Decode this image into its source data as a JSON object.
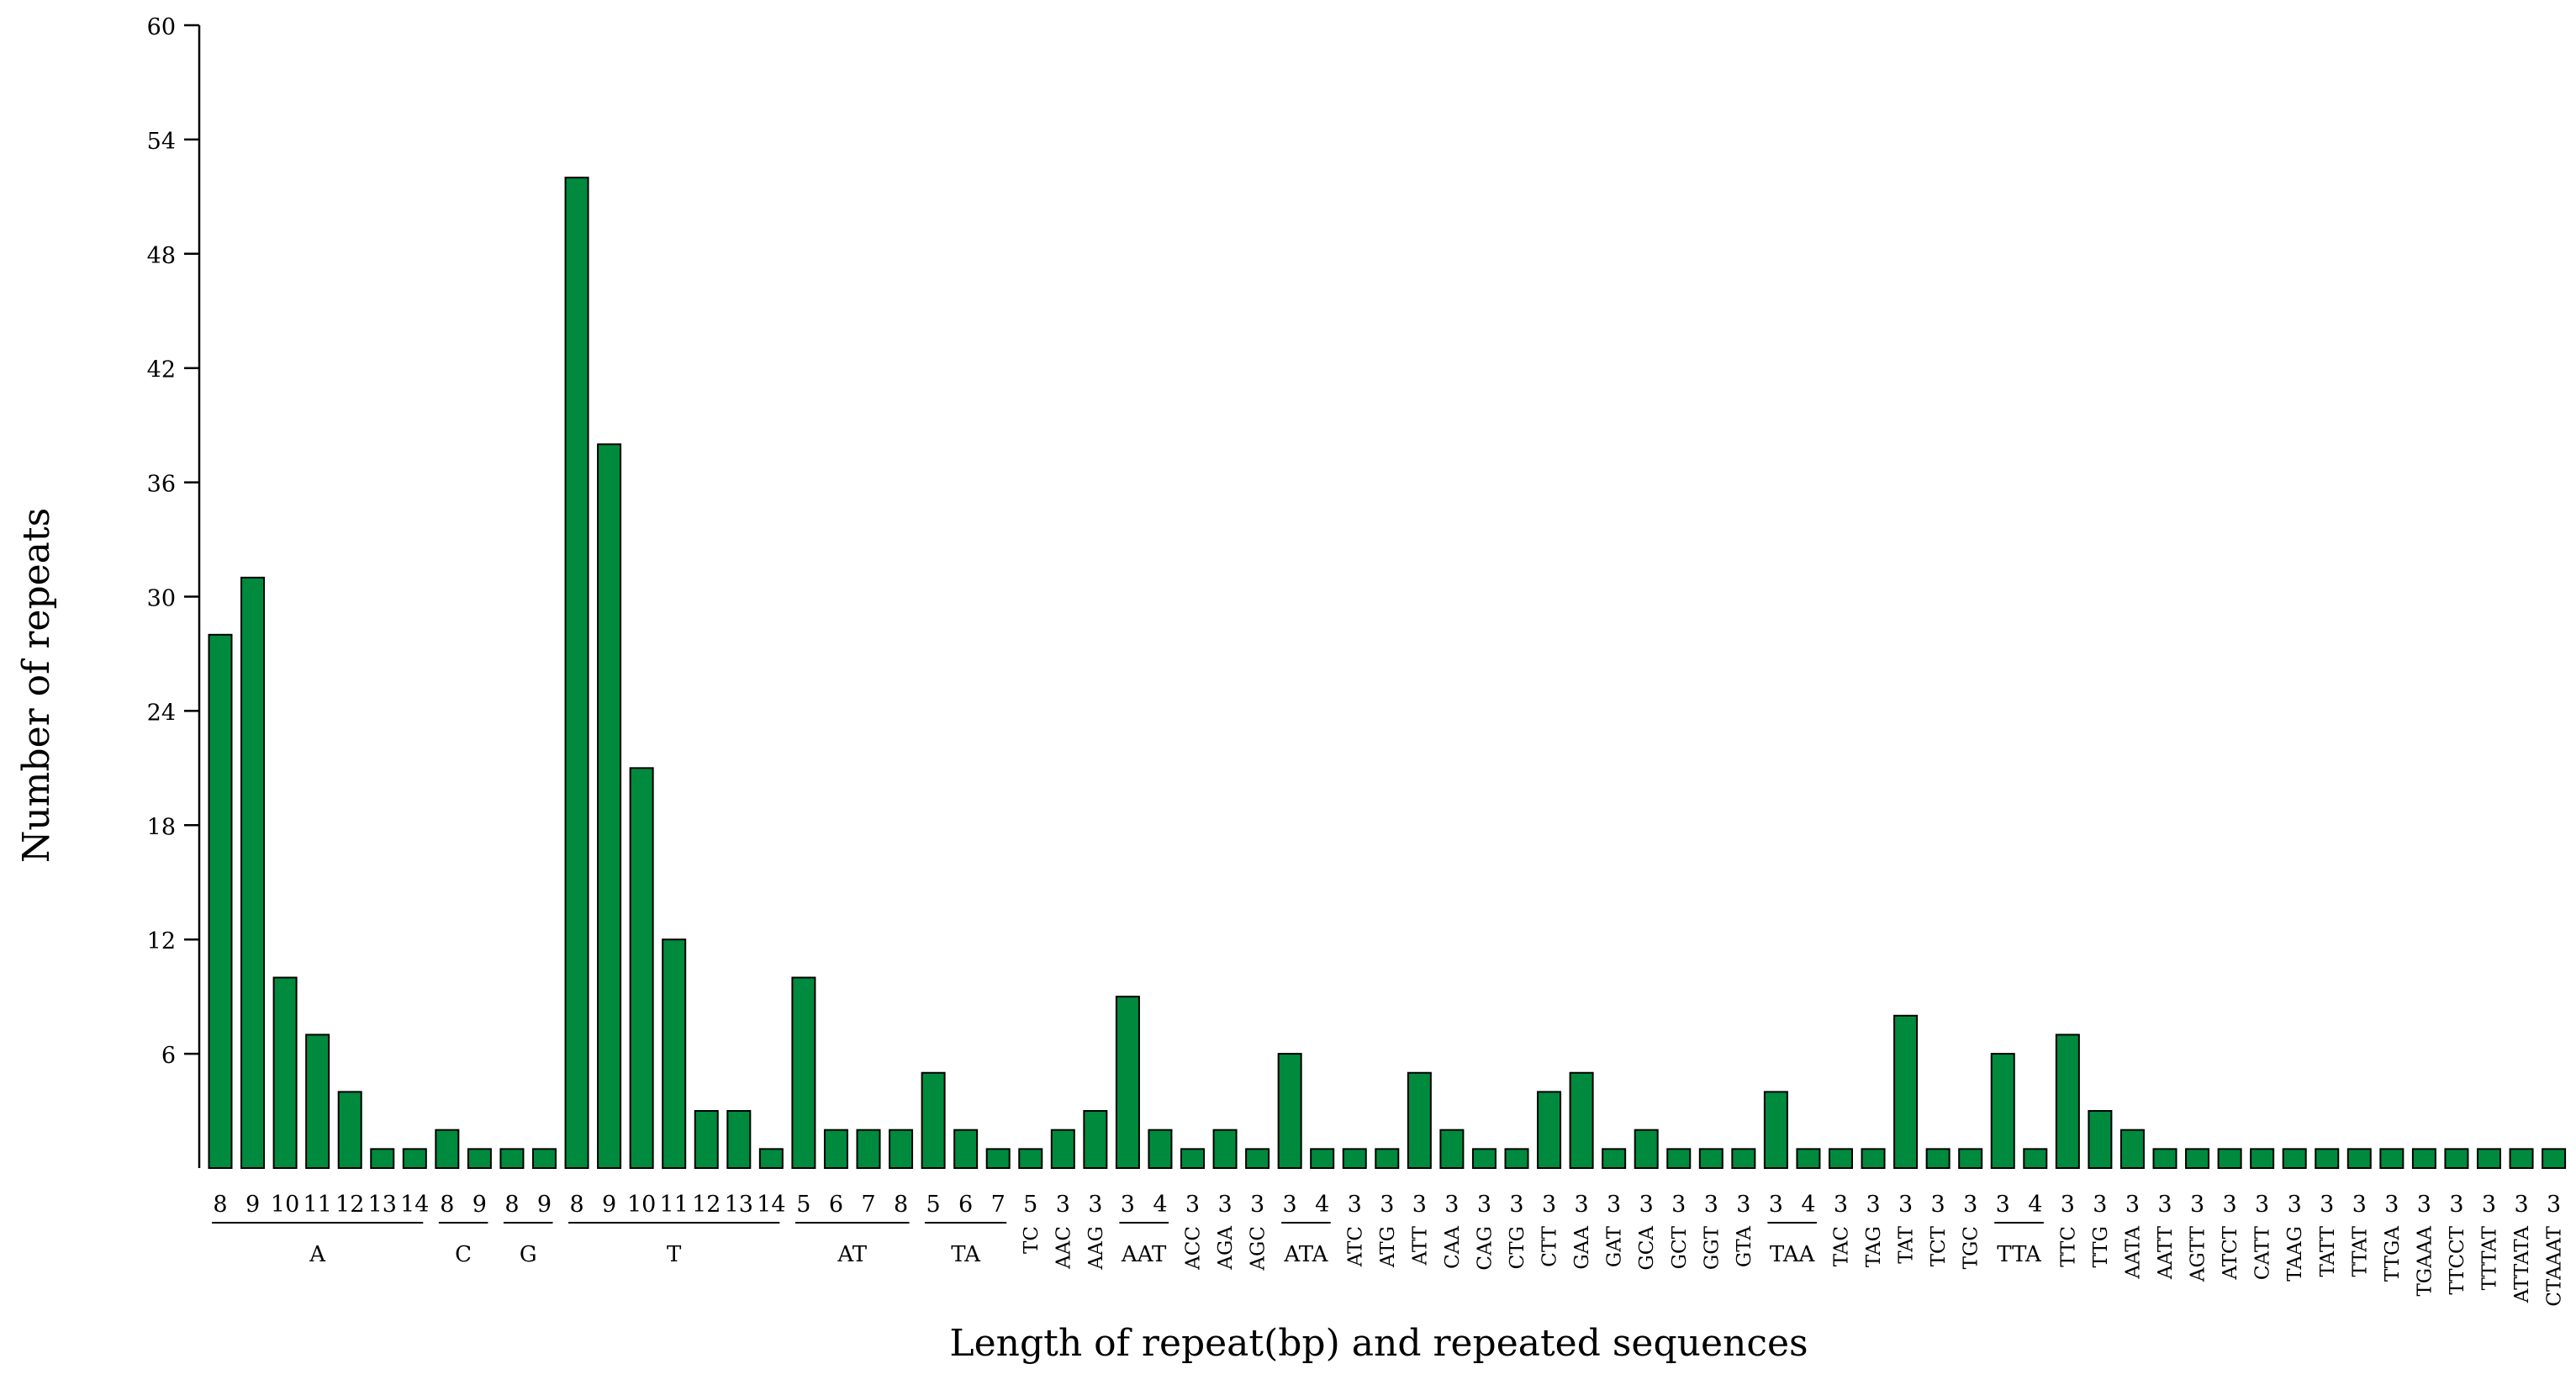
{
  "chart_data": {
    "type": "bar",
    "title": "",
    "xlabel": "Length of repeat(bp) and repeated sequences",
    "ylabel": "Number of repeats",
    "ylim": [
      0,
      60
    ],
    "yticks": [
      6,
      12,
      18,
      24,
      30,
      36,
      42,
      48,
      54,
      60
    ],
    "grid": false,
    "bar_color": "#008a3e",
    "bar_edge_color": "#000000",
    "groups": [
      {
        "name": "A",
        "bars": [
          {
            "length": "8",
            "value": 28
          },
          {
            "length": "9",
            "value": 31
          },
          {
            "length": "10",
            "value": 10
          },
          {
            "length": "11",
            "value": 7
          },
          {
            "length": "12",
            "value": 4
          },
          {
            "length": "13",
            "value": 1
          },
          {
            "length": "14",
            "value": 1
          }
        ]
      },
      {
        "name": "C",
        "bars": [
          {
            "length": "8",
            "value": 2
          },
          {
            "length": "9",
            "value": 1
          }
        ]
      },
      {
        "name": "G",
        "bars": [
          {
            "length": "8",
            "value": 1
          },
          {
            "length": "9",
            "value": 1
          }
        ]
      },
      {
        "name": "T",
        "bars": [
          {
            "length": "8",
            "value": 52
          },
          {
            "length": "9",
            "value": 38
          },
          {
            "length": "10",
            "value": 21
          },
          {
            "length": "11",
            "value": 12
          },
          {
            "length": "12",
            "value": 3
          },
          {
            "length": "13",
            "value": 3
          },
          {
            "length": "14",
            "value": 1
          }
        ]
      },
      {
        "name": "AT",
        "bars": [
          {
            "length": "5",
            "value": 10
          },
          {
            "length": "6",
            "value": 2
          },
          {
            "length": "7",
            "value": 2
          },
          {
            "length": "8",
            "value": 2
          }
        ]
      },
      {
        "name": "TA",
        "bars": [
          {
            "length": "5",
            "value": 5
          },
          {
            "length": "6",
            "value": 2
          },
          {
            "length": "7",
            "value": 1
          }
        ]
      },
      {
        "name": "TC",
        "bars": [
          {
            "length": "5",
            "value": 1
          }
        ]
      },
      {
        "name": "AAC",
        "bars": [
          {
            "length": "3",
            "value": 2
          }
        ]
      },
      {
        "name": "AAG",
        "bars": [
          {
            "length": "3",
            "value": 3
          }
        ]
      },
      {
        "name": "AAT",
        "bars": [
          {
            "length": "3",
            "value": 9
          },
          {
            "length": "4",
            "value": 2
          }
        ]
      },
      {
        "name": "ACC",
        "bars": [
          {
            "length": "3",
            "value": 1
          }
        ]
      },
      {
        "name": "AGA",
        "bars": [
          {
            "length": "3",
            "value": 2
          }
        ]
      },
      {
        "name": "AGC",
        "bars": [
          {
            "length": "3",
            "value": 1
          }
        ]
      },
      {
        "name": "ATA",
        "bars": [
          {
            "length": "3",
            "value": 6
          },
          {
            "length": "4",
            "value": 1
          }
        ]
      },
      {
        "name": "ATC",
        "bars": [
          {
            "length": "3",
            "value": 1
          }
        ]
      },
      {
        "name": "ATG",
        "bars": [
          {
            "length": "3",
            "value": 1
          }
        ]
      },
      {
        "name": "ATT",
        "bars": [
          {
            "length": "3",
            "value": 5
          }
        ]
      },
      {
        "name": "CAA",
        "bars": [
          {
            "length": "3",
            "value": 2
          }
        ]
      },
      {
        "name": "CAG",
        "bars": [
          {
            "length": "3",
            "value": 1
          }
        ]
      },
      {
        "name": "CTG",
        "bars": [
          {
            "length": "3",
            "value": 1
          }
        ]
      },
      {
        "name": "CTT",
        "bars": [
          {
            "length": "3",
            "value": 4
          }
        ]
      },
      {
        "name": "GAA",
        "bars": [
          {
            "length": "3",
            "value": 5
          }
        ]
      },
      {
        "name": "GAT",
        "bars": [
          {
            "length": "3",
            "value": 1
          }
        ]
      },
      {
        "name": "GCA",
        "bars": [
          {
            "length": "3",
            "value": 2
          }
        ]
      },
      {
        "name": "GCT",
        "bars": [
          {
            "length": "3",
            "value": 1
          }
        ]
      },
      {
        "name": "GGT",
        "bars": [
          {
            "length": "3",
            "value": 1
          }
        ]
      },
      {
        "name": "GTA",
        "bars": [
          {
            "length": "3",
            "value": 1
          }
        ]
      },
      {
        "name": "TAA",
        "bars": [
          {
            "length": "3",
            "value": 4
          },
          {
            "length": "4",
            "value": 1
          }
        ]
      },
      {
        "name": "TAC",
        "bars": [
          {
            "length": "3",
            "value": 1
          }
        ]
      },
      {
        "name": "TAG",
        "bars": [
          {
            "length": "3",
            "value": 1
          }
        ]
      },
      {
        "name": "TAT",
        "bars": [
          {
            "length": "3",
            "value": 8
          }
        ]
      },
      {
        "name": "TCT",
        "bars": [
          {
            "length": "3",
            "value": 1
          }
        ]
      },
      {
        "name": "TGC",
        "bars": [
          {
            "length": "3",
            "value": 1
          }
        ]
      },
      {
        "name": "TTA",
        "bars": [
          {
            "length": "3",
            "value": 6
          },
          {
            "length": "4",
            "value": 1
          }
        ]
      },
      {
        "name": "TTC",
        "bars": [
          {
            "length": "3",
            "value": 7
          }
        ]
      },
      {
        "name": "TTG",
        "bars": [
          {
            "length": "3",
            "value": 3
          }
        ]
      },
      {
        "name": "AATA",
        "bars": [
          {
            "length": "3",
            "value": 2
          }
        ]
      },
      {
        "name": "AATT",
        "bars": [
          {
            "length": "3",
            "value": 1
          }
        ]
      },
      {
        "name": "AGTT",
        "bars": [
          {
            "length": "3",
            "value": 1
          }
        ]
      },
      {
        "name": "ATCT",
        "bars": [
          {
            "length": "3",
            "value": 1
          }
        ]
      },
      {
        "name": "CATT",
        "bars": [
          {
            "length": "3",
            "value": 1
          }
        ]
      },
      {
        "name": "TAAG",
        "bars": [
          {
            "length": "3",
            "value": 1
          }
        ]
      },
      {
        "name": "TATT",
        "bars": [
          {
            "length": "3",
            "value": 1
          }
        ]
      },
      {
        "name": "TTAT",
        "bars": [
          {
            "length": "3",
            "value": 1
          }
        ]
      },
      {
        "name": "TTGA",
        "bars": [
          {
            "length": "3",
            "value": 1
          }
        ]
      },
      {
        "name": "TGAAA",
        "bars": [
          {
            "length": "3",
            "value": 1
          }
        ]
      },
      {
        "name": "TTCCT",
        "bars": [
          {
            "length": "3",
            "value": 1
          }
        ]
      },
      {
        "name": "TTTAT",
        "bars": [
          {
            "length": "3",
            "value": 1
          }
        ]
      },
      {
        "name": "ATTATA",
        "bars": [
          {
            "length": "3",
            "value": 1
          }
        ]
      },
      {
        "name": "CTAAAT",
        "bars": [
          {
            "length": "3",
            "value": 1
          }
        ]
      }
    ]
  }
}
